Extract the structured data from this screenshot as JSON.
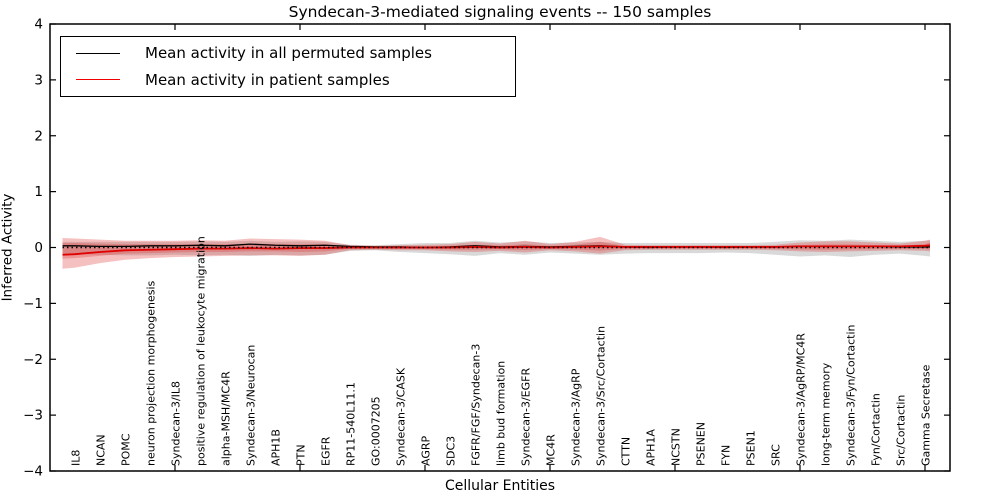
{
  "chart_data": {
    "type": "line",
    "title": "Syndecan-3-mediated signaling events -- 150 samples",
    "xlabel": "Cellular Entities",
    "ylabel": "Inferred Activity",
    "ylim": [
      -4,
      4
    ],
    "grid": "off",
    "y_tick_labels_top_to_bottom": [
      "4",
      "3",
      "2",
      "1",
      "0",
      "−1",
      "−2",
      "−3",
      "−4"
    ],
    "x_tick_positions": [
      5,
      10,
      15,
      20,
      25,
      30,
      35
    ],
    "categories": [
      "IL8",
      "NCAN",
      "POMC",
      "neuron projection morphogenesis",
      "Syndecan-3/IL8",
      "positive regulation of leukocyte migration",
      "alpha-MSH/MC4R",
      "Syndecan-3/Neurocan",
      "APH1B",
      "PTN",
      "EGFR",
      "RP11-540L11.1",
      "GO:0007205",
      "Syndecan-3/CASK",
      "AGRP",
      "SDC3",
      "FGFR/FGF/Syndecan-3",
      "limb bud formation",
      "Syndecan-3/EGFR",
      "MC4R",
      "Syndecan-3/AgRP",
      "Syndecan-3/Src/Cortactin",
      "CTTN",
      "APH1A",
      "NCSTN",
      "PSENEN",
      "FYN",
      "PSEN1",
      "SRC",
      "Syndecan-3/AgRP/MC4R",
      "long-term memory",
      "Syndecan-3/Fyn/Cortactin",
      "Fyn/Cortactin",
      "Src/Cortactin",
      "Gamma Secretase"
    ],
    "legend": {
      "position": "upper left",
      "items": [
        {
          "label": "Mean activity in all permuted samples",
          "color": "#000000"
        },
        {
          "label": "Mean activity in patient samples",
          "color": "#f00000"
        }
      ]
    },
    "colors": {
      "permuted_band": "rgba(120,120,120,0.28)",
      "patient_band": "rgba(225,60,60,0.32)",
      "permuted_line": "#000000",
      "patient_line": "#e00000",
      "zero_reference": "#000000"
    },
    "x_units": [
      0.5,
      1,
      2,
      3,
      4,
      5,
      6,
      7,
      8,
      9,
      10,
      11,
      12,
      13,
      14,
      15,
      16,
      17,
      18,
      19,
      20,
      21,
      22,
      23,
      24,
      25,
      26,
      27,
      28,
      29,
      30,
      31,
      32,
      33,
      34,
      35,
      35.2
    ],
    "series": [
      {
        "name": "Mean activity in all permuted samples",
        "style": "solid",
        "color": "#000000",
        "values": [
          0.03,
          0.03,
          0.02,
          0.02,
          0.03,
          0.03,
          0.04,
          0.03,
          0.06,
          0.04,
          0.03,
          0.04,
          0.02,
          0.01,
          0.01,
          0.0,
          0.01,
          0.03,
          0.01,
          0.02,
          0.01,
          0.02,
          0.03,
          0.01,
          0.0,
          0.01,
          0.01,
          0.0,
          0.01,
          0.01,
          0.02,
          0.02,
          0.02,
          0.02,
          0.01,
          0.01,
          0.01
        ]
      },
      {
        "name": "Mean activity in patient samples",
        "style": "solid",
        "color": "#e00000",
        "values": [
          -0.13,
          -0.12,
          -0.08,
          -0.05,
          -0.04,
          -0.03,
          -0.02,
          -0.02,
          -0.01,
          -0.02,
          -0.01,
          -0.01,
          0.0,
          0.0,
          0.0,
          0.0,
          0.0,
          0.01,
          0.0,
          0.01,
          0.0,
          0.01,
          0.02,
          0.01,
          0.01,
          0.01,
          0.01,
          0.01,
          0.01,
          0.01,
          0.02,
          0.02,
          0.02,
          0.02,
          0.02,
          0.03,
          0.04
        ]
      },
      {
        "name": "zero reference",
        "style": "dotted",
        "color": "#000000",
        "constant_value": 0
      }
    ],
    "bands": [
      {
        "name": "permuted activity range",
        "color": "rgba(120,120,120,0.28)",
        "upper": [
          0.1,
          0.1,
          0.1,
          0.1,
          0.1,
          0.1,
          0.11,
          0.1,
          0.12,
          0.1,
          0.11,
          0.1,
          0.05,
          0.04,
          0.06,
          0.08,
          0.08,
          0.12,
          0.09,
          0.11,
          0.08,
          0.09,
          0.1,
          0.08,
          0.08,
          0.08,
          0.08,
          0.08,
          0.08,
          0.1,
          0.13,
          0.12,
          0.14,
          0.12,
          0.1,
          0.12,
          0.13
        ],
        "lower": [
          -0.12,
          -0.12,
          -0.13,
          -0.14,
          -0.14,
          -0.13,
          -0.14,
          -0.13,
          -0.15,
          -0.13,
          -0.14,
          -0.13,
          -0.06,
          -0.05,
          -0.08,
          -0.1,
          -0.12,
          -0.15,
          -0.1,
          -0.13,
          -0.09,
          -0.11,
          -0.13,
          -0.11,
          -0.1,
          -0.1,
          -0.1,
          -0.09,
          -0.1,
          -0.13,
          -0.16,
          -0.14,
          -0.17,
          -0.13,
          -0.11,
          -0.15,
          -0.16
        ]
      },
      {
        "name": "patient activity range outer",
        "color": "rgba(225,60,60,0.32)",
        "upper": [
          0.17,
          0.16,
          0.14,
          0.12,
          0.12,
          0.12,
          0.13,
          0.12,
          0.16,
          0.15,
          0.14,
          0.12,
          0.04,
          0.03,
          0.04,
          0.05,
          0.06,
          0.1,
          0.07,
          0.12,
          0.06,
          0.1,
          0.19,
          0.05,
          0.04,
          0.04,
          0.04,
          0.04,
          0.04,
          0.05,
          0.09,
          0.11,
          0.11,
          0.09,
          0.07,
          0.12,
          0.14
        ],
        "lower": [
          -0.38,
          -0.36,
          -0.28,
          -0.22,
          -0.19,
          -0.17,
          -0.16,
          -0.15,
          -0.14,
          -0.14,
          -0.15,
          -0.13,
          -0.05,
          -0.04,
          -0.05,
          -0.05,
          -0.07,
          -0.08,
          -0.06,
          -0.09,
          -0.05,
          -0.07,
          -0.11,
          -0.05,
          -0.04,
          -0.04,
          -0.04,
          -0.04,
          -0.04,
          -0.05,
          -0.07,
          -0.08,
          -0.07,
          -0.06,
          -0.05,
          -0.06,
          -0.07
        ]
      },
      {
        "name": "patient activity range inner",
        "color": "rgba(225,60,60,0.32)",
        "upper": [
          0.08,
          0.08,
          0.07,
          0.06,
          0.06,
          0.06,
          0.06,
          0.06,
          0.07,
          0.06,
          0.06,
          0.06,
          0.02,
          0.015,
          0.02,
          0.025,
          0.03,
          0.05,
          0.035,
          0.06,
          0.03,
          0.05,
          0.1,
          0.025,
          0.02,
          0.02,
          0.02,
          0.02,
          0.02,
          0.025,
          0.045,
          0.055,
          0.055,
          0.045,
          0.035,
          0.06,
          0.09
        ],
        "lower": [
          -0.2,
          -0.19,
          -0.15,
          -0.11,
          -0.1,
          -0.09,
          -0.08,
          -0.08,
          -0.07,
          -0.07,
          -0.08,
          -0.07,
          -0.025,
          -0.02,
          -0.025,
          -0.03,
          -0.035,
          -0.04,
          -0.03,
          -0.045,
          -0.025,
          -0.035,
          -0.055,
          -0.025,
          -0.02,
          -0.02,
          -0.02,
          -0.02,
          -0.02,
          -0.025,
          -0.035,
          -0.04,
          -0.035,
          -0.03,
          -0.025,
          -0.03,
          -0.035
        ]
      }
    ]
  }
}
